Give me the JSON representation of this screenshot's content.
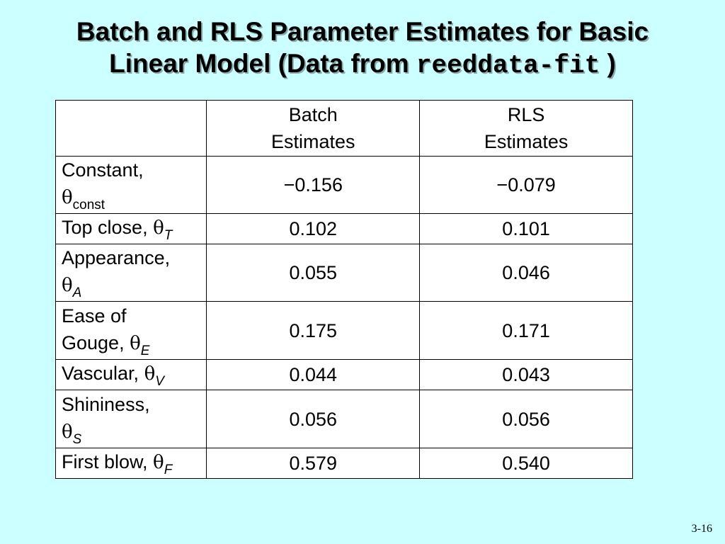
{
  "slide": {
    "title_line1": "Batch and RLS Parameter Estimates for Basic",
    "title_line2": "Linear Model (Data from ",
    "title_code": "reeddata-fit",
    "title_close": " )",
    "page_number": "3-16"
  },
  "table": {
    "headers": {
      "corner": "",
      "batch_line1": "Batch",
      "batch_line2": "Estimates",
      "rls_line1": "RLS",
      "rls_line2": "Estimates"
    },
    "rows": [
      {
        "label": "Constant,",
        "label2": "",
        "theta": "θ",
        "sub": "const",
        "batch": "−0.156",
        "rls": "−0.079"
      },
      {
        "label": "Top close, ",
        "label2": "",
        "theta": "θ",
        "sub": "T",
        "batch": "0.102",
        "rls": "0.101"
      },
      {
        "label": "Appearance,",
        "label2": "",
        "theta": "θ",
        "sub": "A",
        "batch": "0.055",
        "rls": "0.046"
      },
      {
        "label": "Ease of",
        "label2": "Gouge, ",
        "theta": "θ",
        "sub": "E",
        "batch": "0.175",
        "rls": "0.171"
      },
      {
        "label": "Vascular, ",
        "label2": "",
        "theta": "θ",
        "sub": "V",
        "batch": "0.044",
        "rls": "0.043"
      },
      {
        "label": "Shininess,",
        "label2": "",
        "theta": "θ",
        "sub": "S",
        "batch": "0.056",
        "rls": "0.056"
      },
      {
        "label": "First blow, ",
        "label2": "",
        "theta": "θ",
        "sub": "F",
        "batch": "0.579",
        "rls": "0.540"
      }
    ]
  }
}
